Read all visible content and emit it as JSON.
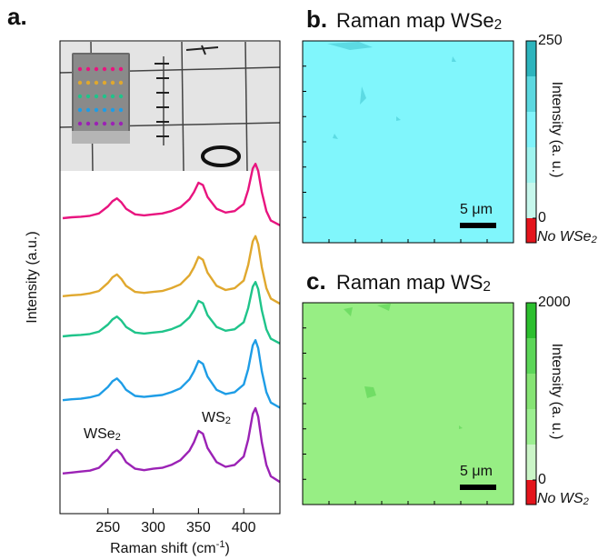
{
  "chart_data": [
    {
      "type": "line",
      "panel_label": "a.",
      "xlabel": "Raman shift (cm",
      "xlabel_sup": "-1",
      "xlabel_end": ")",
      "ylabel": "Intensity (a.u.)",
      "xlim": [
        197,
        440
      ],
      "xticks": [
        250,
        300,
        350,
        400
      ],
      "ylim": [
        0,
        100
      ],
      "x": [
        200,
        210,
        220,
        230,
        240,
        250,
        255,
        260,
        265,
        270,
        280,
        290,
        300,
        310,
        320,
        330,
        340,
        345,
        350,
        355,
        360,
        370,
        380,
        390,
        400,
        405,
        410,
        413,
        416,
        420,
        425,
        430,
        440
      ],
      "series": [
        {
          "color": "#e8147f",
          "values": [
            62.5,
            62.7,
            62.8,
            63.0,
            63.5,
            65.0,
            66.1,
            66.7,
            65.8,
            64.5,
            63.3,
            63.1,
            63.3,
            63.5,
            64.0,
            64.8,
            66.5,
            68.0,
            70.0,
            69.5,
            67.0,
            64.5,
            63.7,
            64.0,
            65.5,
            68.5,
            73.0,
            74.0,
            72.5,
            68.0,
            64.0,
            62.0,
            61.0
          ]
        },
        {
          "color": "#e0a82e",
          "values": [
            46.0,
            46.2,
            46.3,
            46.6,
            47.1,
            48.8,
            50.0,
            50.6,
            49.6,
            48.2,
            46.9,
            46.7,
            46.9,
            47.1,
            47.7,
            48.5,
            50.4,
            52.1,
            54.3,
            53.7,
            51.0,
            48.2,
            47.3,
            47.7,
            49.3,
            52.6,
            57.6,
            58.7,
            57.0,
            52.1,
            47.7,
            45.5,
            44.4
          ]
        },
        {
          "color": "#1fc48a",
          "values": [
            37.5,
            37.7,
            37.8,
            38.0,
            38.5,
            40.0,
            41.1,
            41.7,
            40.8,
            39.5,
            38.3,
            38.1,
            38.3,
            38.5,
            39.0,
            39.8,
            41.5,
            43.0,
            45.0,
            44.5,
            42.0,
            39.5,
            38.7,
            39.0,
            40.5,
            43.5,
            48.0,
            49.0,
            47.5,
            43.0,
            39.0,
            37.0,
            36.0
          ]
        },
        {
          "color": "#1e9de6",
          "values": [
            24.0,
            24.2,
            24.3,
            24.6,
            25.1,
            26.8,
            28.0,
            28.6,
            27.6,
            26.2,
            24.9,
            24.7,
            24.9,
            25.1,
            25.7,
            26.5,
            28.4,
            30.1,
            32.3,
            31.7,
            29.0,
            26.2,
            25.3,
            25.7,
            27.3,
            30.6,
            35.6,
            36.7,
            35.0,
            30.1,
            25.7,
            23.5,
            22.4
          ]
        },
        {
          "color": "#9b22b5",
          "values": [
            8.5,
            8.7,
            8.9,
            9.1,
            9.7,
            11.5,
            12.8,
            13.5,
            12.5,
            10.9,
            9.5,
            9.2,
            9.5,
            9.7,
            10.3,
            11.3,
            13.3,
            15.1,
            17.5,
            16.9,
            13.9,
            10.9,
            9.9,
            10.3,
            12.1,
            15.7,
            21.1,
            22.3,
            20.5,
            15.1,
            10.3,
            7.9,
            6.7
          ]
        }
      ],
      "annotations": [
        {
          "text": "WSe",
          "sub": "2"
        },
        {
          "text": "WS",
          "sub": "2"
        }
      ]
    },
    {
      "type": "map",
      "panel_label": "b.",
      "title": "Raman map WSe",
      "title_sub": "2",
      "color": "#80f6fc",
      "colorbar_colors": [
        "#c6f7ec",
        "#9ff4ef",
        "#80f3fb",
        "#5cd8e0",
        "#2db4bd"
      ],
      "ylim": [
        0,
        250
      ],
      "yticks": [
        0,
        250
      ],
      "colorbar_label": "Intensity (a. u.)",
      "no_data_label": "No WSe",
      "no_data_label_sub": "2",
      "no_data_color": "#e4141c",
      "scale_bar": "5 μm"
    },
    {
      "type": "map",
      "panel_label": "c.",
      "title": "Raman map WS",
      "title_sub": "2",
      "color": "#97ee84",
      "colorbar_colors": [
        "#cbf5c7",
        "#9cef90",
        "#86e474",
        "#5cd658",
        "#2cbf2e"
      ],
      "ylim": [
        0,
        2000
      ],
      "yticks": [
        0,
        2000
      ],
      "colorbar_label": "Intensity (a. u.)",
      "no_data_label": "No WS",
      "no_data_label_sub": "2",
      "no_data_color": "#e4141c",
      "scale_bar": "5 μm"
    }
  ]
}
